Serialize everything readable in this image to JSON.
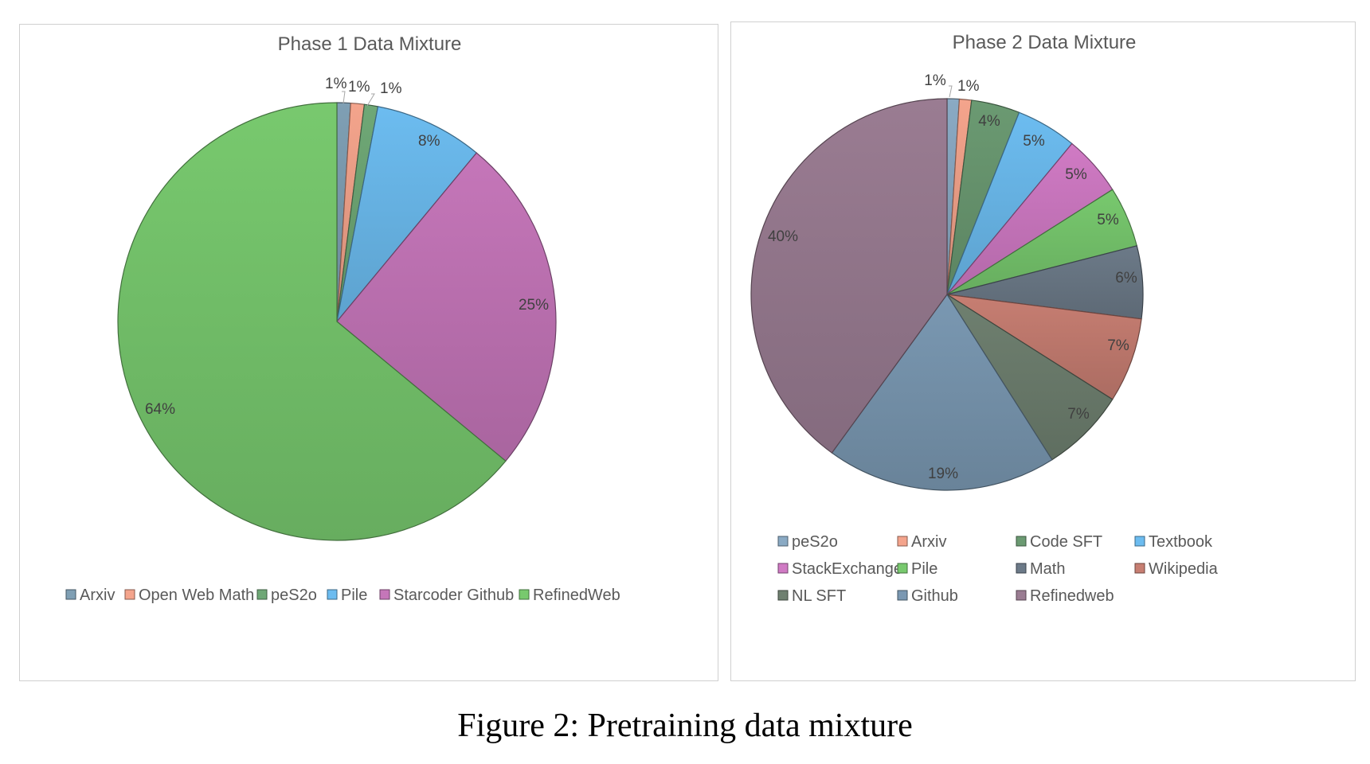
{
  "caption": "Figure 2: Pretraining data mixture",
  "chart_data": [
    {
      "type": "pie",
      "title": "Phase 1 Data Mixture",
      "categories": [
        "Arxiv",
        "Open Web Math",
        "peS2o",
        "Pile",
        "Starcoder Github",
        "RefinedWeb"
      ],
      "values": [
        1,
        1,
        1,
        8,
        25,
        64
      ],
      "labels": [
        "1%",
        "1%",
        "1%",
        "8%",
        "25%",
        "64%"
      ],
      "colors": [
        "#7f9fb4",
        "#f4a48c",
        "#6fa876",
        "#6cbcf0",
        "#c576b9",
        "#78c96e"
      ],
      "legend": "bottom"
    },
    {
      "type": "pie",
      "title": "Phase 2 Data Mixture",
      "categories": [
        "peS2o",
        "Arxiv",
        "Code SFT",
        "Textbook",
        "StackExchange",
        "Pile",
        "Math",
        "Wikipedia",
        "NL SFT",
        "Github",
        "Refinedweb"
      ],
      "values": [
        1,
        1,
        4,
        5,
        5,
        5,
        6,
        7,
        7,
        19,
        40
      ],
      "labels": [
        "1%",
        "1%",
        "4%",
        "5%",
        "5%",
        "5%",
        "6%",
        "7%",
        "7%",
        "19%",
        "40%"
      ],
      "colors": [
        "#8aaac4",
        "#f4a48c",
        "#6b9a72",
        "#6cbcf0",
        "#d07ac4",
        "#78c96e",
        "#6c7a88",
        "#c77e72",
        "#6f8070",
        "#7a98b2",
        "#9a7c92"
      ],
      "legend": "bottom"
    }
  ]
}
